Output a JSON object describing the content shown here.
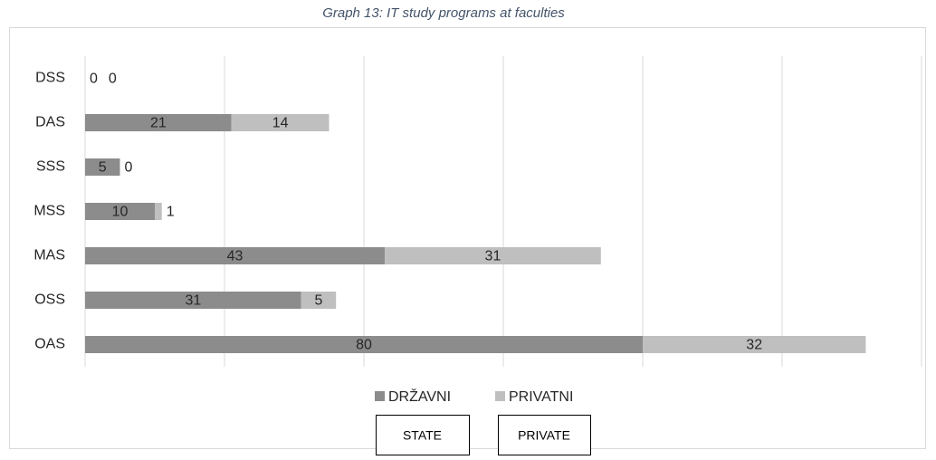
{
  "chart_data": {
    "type": "stacked-barh",
    "title": "Graph 13: IT study programs at faculties",
    "categories": [
      "DSS",
      "DAS",
      "SSS",
      "MSS",
      "MAS",
      "OSS",
      "OAS"
    ],
    "series": [
      {
        "name": "DRŽAVNI",
        "color": "#8c8c8c",
        "values": [
          0,
          21,
          5,
          10,
          43,
          31,
          80
        ]
      },
      {
        "name": "PRIVATNI",
        "color": "#bfbfbf",
        "values": [
          0,
          14,
          0,
          1,
          31,
          5,
          32
        ]
      }
    ],
    "xlim": [
      0,
      120
    ],
    "xticks": [
      0,
      20,
      40,
      60,
      80,
      100,
      120
    ],
    "grid": true,
    "annotations": [
      "STATE",
      "PRIVATE"
    ]
  }
}
